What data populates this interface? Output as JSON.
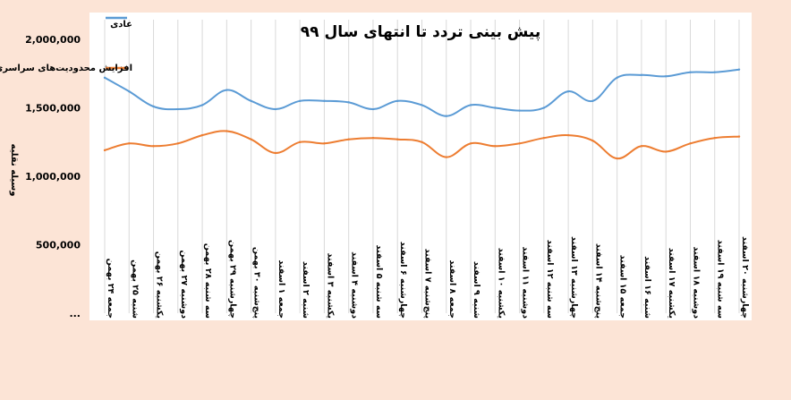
{
  "chart_data": {
    "type": "line",
    "title": "پیش بینی تردد تا انتهای سال ۹۹",
    "ylabel": "وسیله نقلیه",
    "xlabel": "",
    "ylim": [
      0,
      2000000
    ],
    "grid": "vertical",
    "legend_placement": "top-left",
    "y_ticks": [
      {
        "value": 0,
        "label": "..."
      },
      {
        "value": 500000,
        "label": "500,000"
      },
      {
        "value": 1000000,
        "label": "1,000,000"
      },
      {
        "value": 1500000,
        "label": "1,500,000"
      },
      {
        "value": 2000000,
        "label": "2,000,000"
      }
    ],
    "categories": [
      "جمعه ۲۴ بهمن",
      "شنبه ۲۵ بهمن",
      "یکشنبه ۲۶ بهمن",
      "دوشنبه ۲۷ بهمن",
      "سه شنبه ۲۸ بهمن",
      "چهارشنبه ۲۹ بهمن",
      "پنج‌شنبه ۳۰ بهمن",
      "جمعه ۱ اسفند",
      "شنبه ۲ اسفند",
      "یکشنبه ۳ اسفند",
      "دوشنبه ۴ اسفند",
      "سه شنبه ۵ اسفند",
      "چهارشنبه ۶ اسفند",
      "پنج‌شنبه ۷ اسفند",
      "جمعه ۸ اسفند",
      "شنبه ۹ اسفند",
      "یکشنبه ۱۰ اسفند",
      "دوشنبه ۱۱ اسفند",
      "سه شنبه ۱۲ اسفند",
      "چهارشنبه ۱۳ اسفند",
      "پنج‌شنبه ۱۴ اسفند",
      "جمعه ۱۵ اسفند",
      "شنبه ۱۶ اسفند",
      "یکشنبه ۱۷ اسفند",
      "دوشنبه ۱۸ اسفند",
      "سه شنبه ۱۹ اسفند",
      "چهارشنبه ۲۰ اسفند"
    ],
    "series": [
      {
        "name": "عادی",
        "color": "#5b9bd5",
        "values": [
          1720000,
          1620000,
          1510000,
          1490000,
          1520000,
          1630000,
          1550000,
          1490000,
          1550000,
          1550000,
          1540000,
          1490000,
          1550000,
          1520000,
          1440000,
          1520000,
          1500000,
          1480000,
          1500000,
          1620000,
          1550000,
          1720000,
          1740000,
          1730000,
          1760000,
          1760000,
          1780000
        ]
      },
      {
        "name": "افزایش محدودیت‌های سراسری",
        "color": "#ed7d31",
        "values": [
          1190000,
          1240000,
          1220000,
          1240000,
          1300000,
          1330000,
          1270000,
          1170000,
          1250000,
          1240000,
          1270000,
          1280000,
          1270000,
          1250000,
          1140000,
          1240000,
          1220000,
          1240000,
          1280000,
          1300000,
          1260000,
          1130000,
          1220000,
          1180000,
          1240000,
          1280000,
          1290000
        ]
      }
    ]
  }
}
